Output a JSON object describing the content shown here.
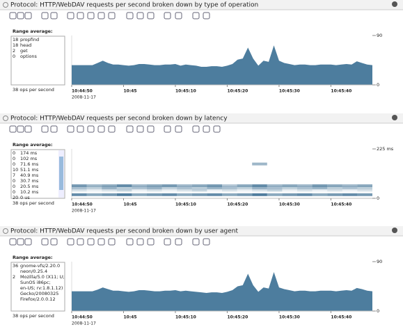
{
  "panels": [
    {
      "title": "Protocol: HTTP/WebDAV requests per second broken down by type of operation",
      "range_average_label": "Range average:",
      "legend": [
        {
          "count": 18,
          "name": "propfind"
        },
        {
          "count": 18,
          "name": "head"
        },
        {
          "count": 2,
          "name": "get"
        },
        {
          "count": 0,
          "name": "options"
        }
      ],
      "rate": "38 ops per second",
      "chart": {
        "type": "area",
        "color": "#4d7d9e",
        "xlim": [
          0,
          58
        ],
        "ylim": [
          0,
          90
        ],
        "yticks": [
          0,
          90
        ],
        "xticks": [
          {
            "value": 0,
            "label": "10:44:50"
          },
          {
            "value": 10,
            "label": "10:45"
          },
          {
            "value": 20,
            "label": "10:45:10"
          },
          {
            "value": 30,
            "label": "10:45:20"
          },
          {
            "value": 40,
            "label": "10:45:30"
          },
          {
            "value": 50,
            "label": "10:45:40"
          }
        ],
        "date_label": "2008-11-17",
        "values": [
          36,
          36,
          36,
          36,
          36,
          40,
          44,
          40,
          37,
          37,
          36,
          35,
          36,
          38,
          38,
          37,
          36,
          36,
          37,
          37,
          38,
          35,
          37,
          36,
          35,
          33,
          33,
          34,
          34,
          33,
          35,
          38,
          46,
          48,
          68,
          48,
          35,
          44,
          42,
          72,
          44,
          40,
          38,
          36,
          37,
          37,
          36,
          36,
          37,
          37,
          37,
          36,
          37,
          38,
          37,
          43,
          40,
          37,
          36
        ]
      }
    },
    {
      "title": "Protocol: HTTP/WebDAV requests per second broken down by latency",
      "range_average_label": "Range average:",
      "legend": [
        {
          "count": 0,
          "name": "174 ms"
        },
        {
          "count": 0,
          "name": "102 ms"
        },
        {
          "count": 0,
          "name": "71.6 ms"
        },
        {
          "count": 10,
          "name": "51.1 ms"
        },
        {
          "count": 7,
          "name": "40.9 ms"
        },
        {
          "count": 0,
          "name": "30.7 ms"
        },
        {
          "count": 0,
          "name": "20.5 ms"
        },
        {
          "count": 0,
          "name": "10.2 ms"
        },
        {
          "count": 20,
          "name": "0 us"
        }
      ],
      "rate": "38 ops per second",
      "chart": {
        "type": "heatmap",
        "color": "#3d6f93",
        "xlim": [
          0,
          58
        ],
        "ylim": [
          0,
          225
        ],
        "yticks": [
          0,
          {
            "value": 225,
            "label": "225 ms"
          }
        ],
        "xticks": [
          {
            "value": 0,
            "label": "10:44:50"
          },
          {
            "value": 10,
            "label": "10:45"
          },
          {
            "value": 20,
            "label": "10:45:10"
          },
          {
            "value": 30,
            "label": "10:45:20"
          },
          {
            "value": 40,
            "label": "10:45:30"
          },
          {
            "value": 50,
            "label": "10:45:40"
          }
        ],
        "date_label": "2008-11-17",
        "rows": [
          {
            "bin": 150,
            "values": [
              0,
              0,
              0,
              0,
              0,
              0,
              0,
              0,
              0,
              0,
              0,
              0,
              0.5,
              0,
              0,
              0,
              0,
              0,
              0,
              0
            ]
          },
          {
            "bin": 51.1,
            "values": [
              0.7,
              0.5,
              0.6,
              0.8,
              0.5,
              0.6,
              0.7,
              0.5,
              0.6,
              0.7,
              0.4,
              0.6,
              0.8,
              0.5,
              0.6,
              0.5,
              0.7,
              0.6,
              0.5,
              0.6
            ]
          },
          {
            "bin": 40.9,
            "values": [
              0.4,
              0.3,
              0.5,
              0.3,
              0.4,
              0.5,
              0.3,
              0.4,
              0.3,
              0.5,
              0.4,
              0.3,
              0.5,
              0.4,
              0.3,
              0.4,
              0.5,
              0.3,
              0.4,
              0.3
            ]
          },
          {
            "bin": 30.7,
            "values": [
              0.2,
              0.1,
              0.2,
              0.3,
              0.1,
              0.2,
              0.1,
              0.2,
              0.3,
              0.1,
              0.2,
              0.1,
              0.2,
              0.3,
              0.1,
              0.2,
              0.1,
              0.2,
              0.1,
              0.2
            ]
          },
          {
            "bin": 10.2,
            "values": [
              0.8,
              0.6,
              0.7,
              0.9,
              0.6,
              0.7,
              0.8,
              0.6,
              0.7,
              0.8,
              0.6,
              0.7,
              0.9,
              0.6,
              0.7,
              0.8,
              0.6,
              0.7,
              0.8,
              0.7
            ]
          }
        ]
      }
    },
    {
      "title": "Protocol: HTTP/WebDAV requests per second broken down by user agent",
      "range_average_label": "Range average:",
      "legend": [
        {
          "count": 36,
          "name_lines": [
            "gnome-vfs/2.20.0",
            "neon/0.25.4"
          ]
        },
        {
          "count": 2,
          "name_lines": [
            "Mozilla/5.0 (X11; U;",
            "SunOS i86pc;",
            "en-US; rv:1.8.1.12)",
            "Gecko/20080325",
            "Firefox/2.0.0.12"
          ]
        }
      ],
      "rate": "38 ops per second",
      "chart": {
        "type": "area",
        "color": "#4d7d9e",
        "xlim": [
          0,
          58
        ],
        "ylim": [
          0,
          90
        ],
        "yticks": [
          0,
          90
        ],
        "xticks": [
          {
            "value": 0,
            "label": "10:44:50"
          },
          {
            "value": 10,
            "label": "10:45"
          },
          {
            "value": 20,
            "label": "10:45:10"
          },
          {
            "value": 30,
            "label": "10:45:20"
          },
          {
            "value": 40,
            "label": "10:45:30"
          },
          {
            "value": 50,
            "label": "10:45:40"
          }
        ],
        "date_label": "2008-11-17",
        "values": [
          36,
          36,
          36,
          36,
          36,
          39,
          43,
          40,
          37,
          37,
          36,
          35,
          36,
          38,
          38,
          37,
          36,
          36,
          37,
          37,
          38,
          36,
          37,
          36,
          35,
          34,
          33,
          34,
          34,
          33,
          35,
          38,
          45,
          47,
          68,
          47,
          35,
          43,
          41,
          71,
          43,
          40,
          38,
          36,
          37,
          37,
          36,
          36,
          37,
          37,
          37,
          36,
          37,
          38,
          37,
          42,
          40,
          37,
          36
        ]
      }
    }
  ]
}
